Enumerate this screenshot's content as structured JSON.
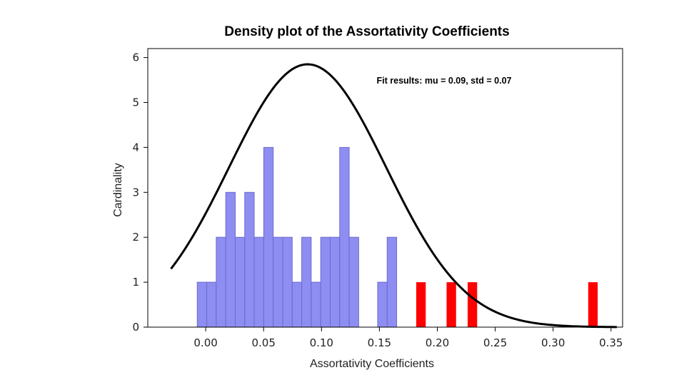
{
  "chart_data": {
    "type": "bar",
    "title": "Density plot of the Assortativity Coefficients",
    "xlabel": "Assortativity Coefficients",
    "ylabel": "Cardinality",
    "annotation": "Fit results: mu = 0.09,  std = 0.07",
    "xlim": [
      -0.05,
      0.36
    ],
    "ylim": [
      0,
      6.2
    ],
    "x_ticks": [
      "0.00",
      "0.05",
      "0.10",
      "0.15",
      "0.20",
      "0.25",
      "0.30",
      "0.35"
    ],
    "y_ticks": [
      "0",
      "1",
      "2",
      "3",
      "4",
      "5",
      "6"
    ],
    "grid": false,
    "bin_width": 0.0082,
    "series": [
      {
        "color": "#8e8ef2",
        "bars": [
          {
            "x": -0.0073,
            "value": 1
          },
          {
            "x": 0.0009,
            "value": 1
          },
          {
            "x": 0.0091,
            "value": 2
          },
          {
            "x": 0.0173,
            "value": 3
          },
          {
            "x": 0.0255,
            "value": 2
          },
          {
            "x": 0.0337,
            "value": 3
          },
          {
            "x": 0.0419,
            "value": 2
          },
          {
            "x": 0.0501,
            "value": 4
          },
          {
            "x": 0.0583,
            "value": 2
          },
          {
            "x": 0.0665,
            "value": 2
          },
          {
            "x": 0.0747,
            "value": 1
          },
          {
            "x": 0.0829,
            "value": 2
          },
          {
            "x": 0.0911,
            "value": 1
          },
          {
            "x": 0.0993,
            "value": 2
          },
          {
            "x": 0.1075,
            "value": 2
          },
          {
            "x": 0.1157,
            "value": 4
          },
          {
            "x": 0.1239,
            "value": 2
          },
          {
            "x": 0.1485,
            "value": 1
          },
          {
            "x": 0.1567,
            "value": 2
          }
        ]
      },
      {
        "color": "#ff0000",
        "bars": [
          {
            "x": 0.1818,
            "value": 1
          },
          {
            "x": 0.208,
            "value": 1
          },
          {
            "x": 0.2262,
            "value": 1
          },
          {
            "x": 0.3303,
            "value": 1
          }
        ]
      }
    ],
    "fit_curve": {
      "color": "#000000",
      "mu": 0.088,
      "sigma": 0.068,
      "peak": 5.85,
      "x_range": [
        -0.03,
        0.355
      ]
    }
  }
}
